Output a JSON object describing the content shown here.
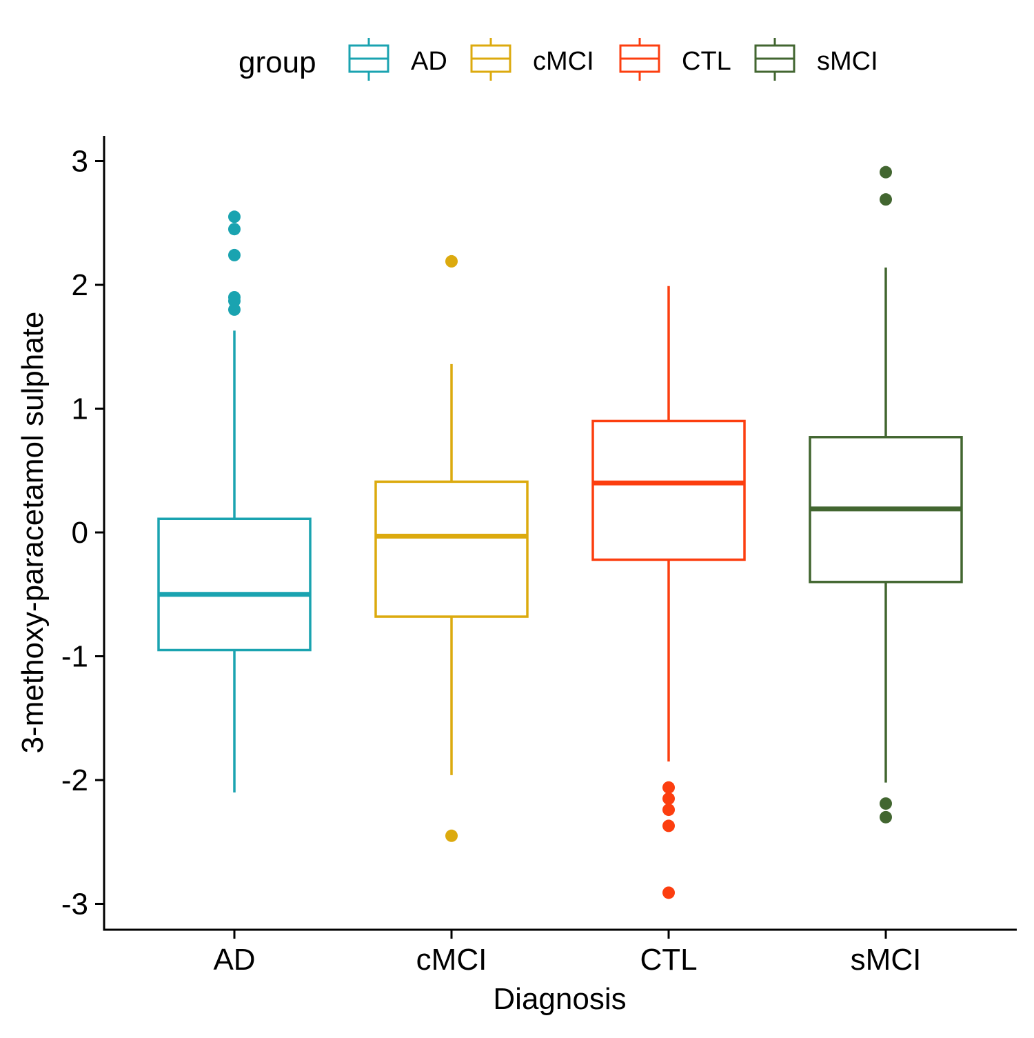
{
  "chart_data": {
    "type": "box",
    "xlabel": "Diagnosis",
    "ylabel": "3-methoxy-paracetamol sulphate",
    "ylim": [
      -3.2,
      3.2
    ],
    "yticks": [
      3,
      2,
      1,
      0,
      -1,
      -2,
      -3
    ],
    "ytick_labels": [
      "3",
      "2",
      "1",
      "0",
      "-1",
      "-2",
      "-3"
    ],
    "legend": {
      "title": "group",
      "position": "top"
    },
    "groups": [
      {
        "name": "AD",
        "color": "#1aa3b0",
        "whisker_low": -2.1,
        "q1": -0.95,
        "median": -0.5,
        "q3": 0.11,
        "whisker_high": 1.63,
        "outliers": [
          2.55,
          2.45,
          2.24,
          1.9,
          1.87,
          1.8
        ]
      },
      {
        "name": "cMCI",
        "color": "#dcaa0e",
        "whisker_low": -1.96,
        "q1": -0.68,
        "median": -0.03,
        "q3": 0.41,
        "whisker_high": 1.36,
        "outliers": [
          2.19,
          -2.45
        ]
      },
      {
        "name": "CTL",
        "color": "#fc3e0f",
        "whisker_low": -1.85,
        "q1": -0.22,
        "median": 0.4,
        "q3": 0.9,
        "whisker_high": 1.99,
        "outliers": [
          -2.06,
          -2.15,
          -2.24,
          -2.37,
          -2.91
        ]
      },
      {
        "name": "sMCI",
        "color": "#426630",
        "whisker_low": -2.02,
        "q1": -0.4,
        "median": 0.19,
        "q3": 0.77,
        "whisker_high": 2.14,
        "outliers": [
          2.91,
          2.69,
          -2.19,
          -2.3
        ]
      }
    ]
  }
}
